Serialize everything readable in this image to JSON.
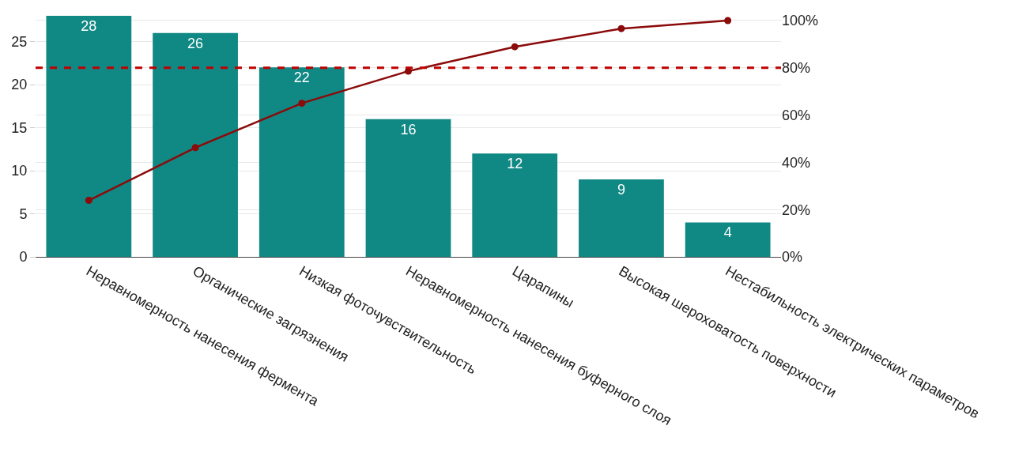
{
  "chart_data": {
    "type": "bar",
    "categories": [
      "Неравномерность нанесения фермента",
      "Органические загрязнения",
      "Низкая фоточувствительность",
      "Неравномерность нанесения буферного слоя",
      "Царапины",
      "Высокая шероховатость поверхности",
      "Нестабильность электрических параметров"
    ],
    "series": [
      {
        "color": "#108884",
        "values": [
          28,
          26,
          22,
          16,
          12,
          9,
          4
        ],
        "value_labels": [
          "28",
          "26",
          "22",
          "16",
          "12",
          "9",
          "4"
        ]
      },
      {
        "type": "line",
        "axis": "y2",
        "color": "#8b0a0a",
        "values": [
          23.9,
          46.2,
          65.0,
          78.6,
          88.9,
          96.6,
          100
        ]
      }
    ],
    "ylim": [
      0,
      28
    ],
    "yticks": [
      0,
      5,
      10,
      15,
      20,
      25
    ],
    "y2lim": [
      0,
      102
    ],
    "y2ticks": [
      {
        "value": 0,
        "label": "0%"
      },
      {
        "value": 20,
        "label": "20%"
      },
      {
        "value": 40,
        "label": "40%"
      },
      {
        "value": 60,
        "label": "60%"
      },
      {
        "value": 80,
        "label": "80%"
      },
      {
        "value": 100,
        "label": "100%"
      }
    ],
    "ref_lines": [
      {
        "axis": "y2",
        "value": 80,
        "color": "#c00000",
        "line_style": "dashed"
      }
    ],
    "grid": true,
    "legend": false,
    "marker": "circle",
    "line_style": "solid"
  }
}
